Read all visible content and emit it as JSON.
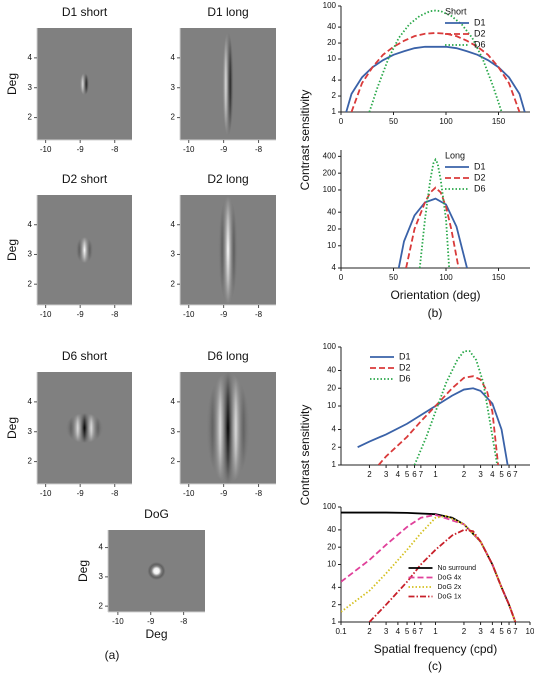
{
  "chart_data": [
    {
      "type": "image",
      "title": "D1 short",
      "ylabel": "Deg",
      "xlim": [
        -10.25,
        -7.5
      ],
      "ylim": [
        1.25,
        5
      ],
      "xticks": [
        -10,
        -9,
        -8
      ],
      "yticks": [
        2,
        3,
        4
      ]
    },
    {
      "type": "image",
      "title": "D1 long",
      "xlim": [
        -10.25,
        -7.5
      ],
      "ylim": [
        1.25,
        5
      ],
      "xticks": [
        -10,
        -9,
        -8
      ],
      "yticks": [
        2,
        3,
        4
      ]
    },
    {
      "type": "image",
      "title": "D2 short",
      "ylabel": "Deg",
      "xlim": [
        -10.25,
        -7.5
      ],
      "ylim": [
        1.3,
        5
      ],
      "xticks": [
        -10,
        -9,
        -8
      ],
      "yticks": [
        2,
        3,
        4
      ]
    },
    {
      "type": "image",
      "title": "D2 long",
      "xlim": [
        -10.25,
        -7.5
      ],
      "ylim": [
        1.3,
        5
      ],
      "xticks": [
        -10,
        -9,
        -8
      ],
      "yticks": [
        2,
        3,
        4
      ]
    },
    {
      "type": "image",
      "title": "D6 short",
      "ylabel": "Deg",
      "xlim": [
        -10.25,
        -7.5
      ],
      "ylim": [
        1.25,
        5
      ],
      "xticks": [
        -10,
        -9,
        -8
      ],
      "yticks": [
        2,
        3,
        4
      ]
    },
    {
      "type": "image",
      "title": "D6 long",
      "xlim": [
        -10.25,
        -7.5
      ],
      "ylim": [
        1.25,
        5
      ],
      "xticks": [
        -10,
        -9,
        -8
      ],
      "yticks": [
        2,
        3,
        4
      ]
    },
    {
      "type": "image",
      "title": "DoG",
      "ylabel": "Deg",
      "xlabel": "Deg",
      "panel_label": "(a)",
      "xlim": [
        -10.3,
        -7.35
      ],
      "ylim": [
        1.8,
        4.6
      ],
      "xticks": [
        -10,
        -9,
        -8
      ],
      "yticks": [
        2,
        3,
        4
      ]
    },
    {
      "type": "line",
      "ylabel": "Contrast sensitivity",
      "legend_title": "Short",
      "legend": "upper right",
      "ylog": true,
      "xlim": [
        0,
        180
      ],
      "ylim": [
        1,
        100
      ],
      "xticks": [
        0,
        50,
        100,
        150
      ],
      "yticks": [
        1,
        2,
        4,
        10,
        20,
        40,
        100
      ],
      "series": [
        {
          "name": "D1",
          "color": "#3a62a8",
          "style": "solid",
          "x": [
            5,
            10,
            20,
            30,
            40,
            50,
            60,
            70,
            80,
            90,
            100,
            110,
            120,
            130,
            140,
            150,
            160,
            170,
            175
          ],
          "values": [
            1,
            2.2,
            4.5,
            7,
            9.5,
            12,
            14,
            16,
            17,
            17,
            17,
            16,
            14,
            12,
            9.5,
            7,
            4.5,
            2.2,
            1
          ]
        },
        {
          "name": "D2",
          "color": "#d93a3a",
          "style": "dashed",
          "x": [
            10,
            20,
            30,
            40,
            50,
            60,
            70,
            80,
            90,
            100,
            110,
            120,
            130,
            140,
            150,
            160,
            170
          ],
          "values": [
            1,
            3.5,
            7,
            12,
            17,
            22,
            27,
            30,
            31,
            30,
            27,
            22,
            17,
            12,
            7,
            3.5,
            1
          ]
        },
        {
          "name": "D6",
          "color": "#2aa84a",
          "style": "dotted",
          "x": [
            27,
            35,
            45,
            55,
            65,
            75,
            85,
            90,
            95,
            105,
            115,
            125,
            135,
            145,
            153
          ],
          "values": [
            1,
            3,
            10,
            25,
            45,
            65,
            80,
            82,
            80,
            65,
            45,
            25,
            10,
            3,
            1
          ]
        }
      ]
    },
    {
      "type": "line",
      "xlabel": "Orientation (deg)",
      "panel_label": "(b)",
      "legend_title": "Long",
      "legend": "upper right",
      "ylog": true,
      "xlim": [
        0,
        180
      ],
      "ylim": [
        4,
        520
      ],
      "xticks": [
        0,
        50,
        100,
        150
      ],
      "yticks": [
        4,
        10,
        20,
        40,
        100,
        200,
        400
      ],
      "series": [
        {
          "name": "D1",
          "color": "#3a62a8",
          "style": "solid",
          "x": [
            55,
            60,
            70,
            80,
            90,
            100,
            110,
            120
          ],
          "values": [
            4,
            12,
            35,
            60,
            70,
            55,
            22,
            4
          ]
        },
        {
          "name": "D2",
          "color": "#d93a3a",
          "style": "dashed",
          "x": [
            62,
            70,
            80,
            85,
            90,
            95,
            100,
            105,
            112
          ],
          "values": [
            4,
            20,
            60,
            90,
            110,
            90,
            50,
            20,
            4
          ]
        },
        {
          "name": "D6",
          "color": "#2aa84a",
          "style": "dotted",
          "x": [
            75,
            80,
            85,
            88,
            90,
            92,
            95,
            100,
            103
          ],
          "values": [
            4,
            30,
            150,
            300,
            350,
            300,
            150,
            30,
            4
          ]
        }
      ]
    },
    {
      "type": "line",
      "ylabel": "Contrast sensitivity",
      "legend": "upper left",
      "xlog": true,
      "ylog": true,
      "xlim": [
        0.1,
        10
      ],
      "ylim": [
        1,
        100
      ],
      "xticks": [
        {
          "value": 0.2,
          "label": "2"
        },
        {
          "value": 0.3,
          "label": "3"
        },
        {
          "value": 0.4,
          "label": "4"
        },
        {
          "value": 0.5,
          "label": "5"
        },
        {
          "value": 0.6,
          "label": "6"
        },
        {
          "value": 0.7,
          "label": "7"
        },
        1,
        2,
        3,
        4,
        5,
        6,
        7
      ],
      "yticks": [
        1,
        2,
        4,
        10,
        20,
        40,
        100
      ],
      "series": [
        {
          "name": "D1",
          "color": "#3a62a8",
          "style": "solid",
          "x": [
            0.15,
            0.2,
            0.3,
            0.5,
            0.7,
            1,
            1.5,
            2,
            2.5,
            3,
            4,
            5,
            5.8
          ],
          "values": [
            2,
            2.5,
            3.3,
            5,
            7,
            10,
            15,
            19,
            20,
            18,
            11,
            4,
            1
          ]
        },
        {
          "name": "D2",
          "color": "#d93a3a",
          "style": "dashed",
          "x": [
            0.25,
            0.3,
            0.5,
            0.7,
            1,
            1.5,
            2,
            2.5,
            3,
            3.5,
            4,
            4.6
          ],
          "values": [
            1,
            1.4,
            3,
            5.5,
            10,
            20,
            30,
            32,
            28,
            18,
            8,
            1
          ]
        },
        {
          "name": "D6",
          "color": "#2aa84a",
          "style": "dotted",
          "x": [
            0.6,
            0.8,
            1,
            1.3,
            1.7,
            2,
            2.3,
            2.7,
            3.2,
            3.8,
            4.5
          ],
          "values": [
            1,
            3,
            8,
            25,
            60,
            85,
            85,
            60,
            25,
            5,
            1
          ]
        }
      ]
    },
    {
      "type": "line",
      "xlabel": "Spatial frequency (cpd)",
      "panel_label": "(c)",
      "legend": "lower center",
      "xlog": true,
      "ylog": true,
      "xlim": [
        0.1,
        10
      ],
      "ylim": [
        1,
        100
      ],
      "xticks": [
        0.1,
        {
          "value": 0.2,
          "label": "2"
        },
        {
          "value": 0.3,
          "label": "3"
        },
        {
          "value": 0.4,
          "label": "4"
        },
        {
          "value": 0.5,
          "label": "5"
        },
        {
          "value": 0.6,
          "label": "6"
        },
        {
          "value": 0.7,
          "label": "7"
        },
        1,
        2,
        3,
        4,
        5,
        6,
        7,
        10
      ],
      "yticks": [
        1,
        2,
        4,
        10,
        20,
        40,
        100
      ],
      "series": [
        {
          "name": "No surround",
          "color": "#000000",
          "style": "solid",
          "x": [
            0.1,
            0.3,
            0.5,
            1,
            1.5,
            2,
            3,
            4,
            5,
            6,
            7
          ],
          "values": [
            80,
            80,
            79,
            75,
            65,
            50,
            25,
            10,
            4,
            2,
            1
          ]
        },
        {
          "name": "DoG 4x",
          "color": "#e0409a",
          "style": "dashed",
          "x": [
            0.1,
            0.2,
            0.3,
            0.5,
            0.7,
            1,
            2,
            3,
            4,
            5,
            6,
            7
          ],
          "values": [
            5,
            12,
            22,
            45,
            65,
            73,
            50,
            25,
            10,
            4,
            2,
            1
          ]
        },
        {
          "name": "DoG 2x",
          "color": "#d4c020",
          "style": "dotted",
          "x": [
            0.1,
            0.2,
            0.3,
            0.5,
            0.7,
            1,
            1.3,
            2,
            3,
            4,
            5,
            6,
            7
          ],
          "values": [
            1.5,
            3.5,
            7,
            18,
            35,
            65,
            70,
            50,
            25,
            10,
            4,
            2,
            1
          ]
        },
        {
          "name": "DoG 1x",
          "color": "#c8202a",
          "style": "dashdot",
          "x": [
            0.2,
            0.3,
            0.5,
            0.7,
            1,
            1.5,
            2,
            2.5,
            3,
            4,
            5,
            6,
            7
          ],
          "values": [
            1,
            2,
            5,
            10,
            18,
            32,
            40,
            38,
            25,
            10,
            4,
            2,
            1
          ]
        }
      ]
    }
  ]
}
